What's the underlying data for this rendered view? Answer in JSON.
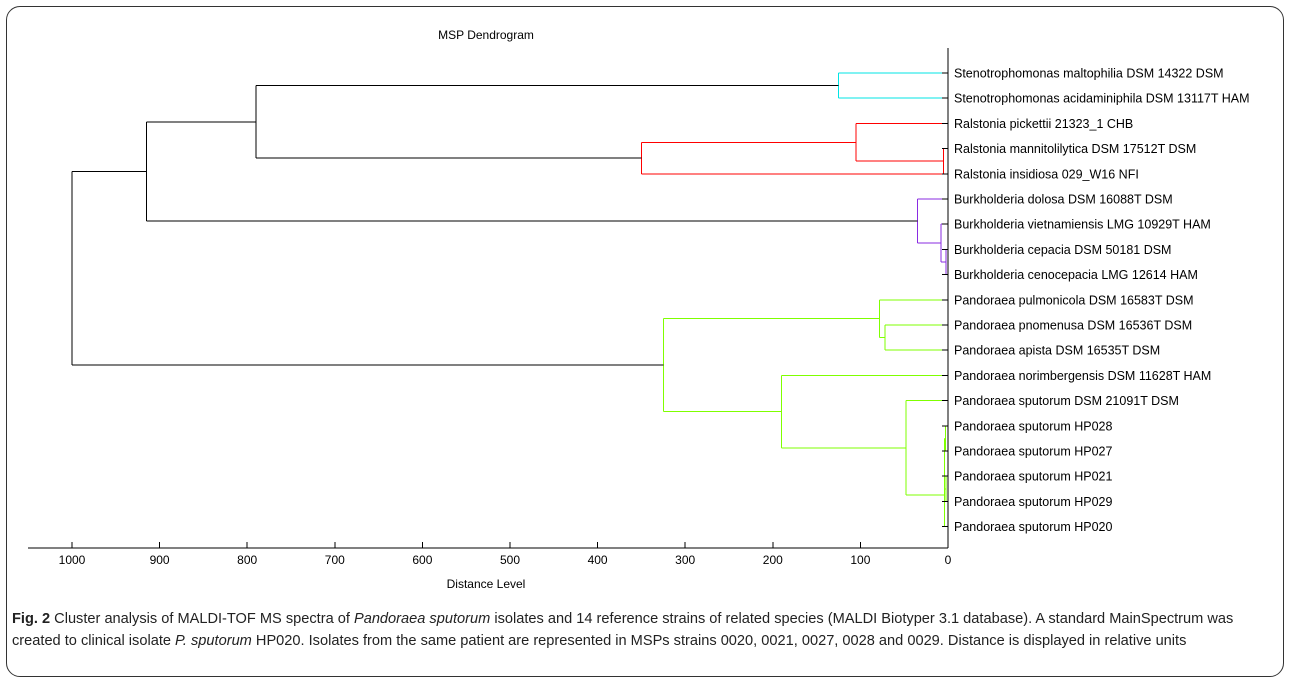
{
  "chart_data": {
    "type": "dendrogram",
    "title": "MSP Dendrogram",
    "xlabel": "Distance Level",
    "xlim": [
      1050,
      0
    ],
    "xticks": [
      1000,
      900,
      800,
      700,
      600,
      500,
      400,
      300,
      200,
      100,
      0
    ],
    "leaves": [
      "Stenotrophomonas maltophilia DSM 14322 DSM",
      "Stenotrophomonas acidaminiphila DSM 13117T HAM",
      "Ralstonia pickettii 21323_1 CHB",
      "Ralstonia mannitolilytica DSM 17512T DSM",
      "Ralstonia insidiosa 029_W16 NFI",
      "Burkholderia dolosa DSM 16088T DSM",
      "Burkholderia vietnamiensis LMG 10929T HAM",
      "Burkholderia cepacia DSM 50181 DSM",
      "Burkholderia cenocepacia LMG 12614 HAM",
      "Pandoraea pulmonicola DSM 16583T DSM",
      "Pandoraea pnomenusa DSM 16536T DSM",
      "Pandoraea apista DSM 16535T DSM",
      "Pandoraea norimbergensis DSM 11628T HAM",
      "Pandoraea sputorum DSM 21091T DSM",
      "Pandoraea sputorum HP028",
      "Pandoraea sputorum HP027",
      "Pandoraea sputorum HP021",
      "Pandoraea sputorum HP029",
      "Pandoraea sputorum HP020"
    ],
    "merges": [
      {
        "id": "N1",
        "children": [
          "L0",
          "L1"
        ],
        "height": 125,
        "color": "#00e5e5"
      },
      {
        "id": "N2",
        "children": [
          "L3",
          "L4"
        ],
        "height": 5,
        "color": "#ff0000"
      },
      {
        "id": "N3",
        "children": [
          "L2",
          "N2"
        ],
        "height": 105,
        "color": "#ff0000"
      },
      {
        "id": "N4",
        "children": [
          "N3",
          "L4x"
        ],
        "height": 350,
        "color": "#ff0000"
      },
      {
        "id": "N5",
        "children": [
          "L7",
          "L8"
        ],
        "height": 2,
        "color": "#8a2be2"
      },
      {
        "id": "N6",
        "children": [
          "N5",
          "L6"
        ],
        "height": 8,
        "color": "#8a2be2"
      },
      {
        "id": "N7",
        "children": [
          "L5",
          "N6"
        ],
        "height": 35,
        "color": "#8a2be2"
      },
      {
        "id": "N8",
        "children": [
          "N1",
          "N4"
        ],
        "height": 790,
        "color": "#000000"
      },
      {
        "id": "N9",
        "children": [
          "N8",
          "N7"
        ],
        "height": 915,
        "color": "#000000"
      },
      {
        "id": "N10",
        "children": [
          "L10",
          "L11"
        ],
        "height": 72,
        "color": "#7fff00"
      },
      {
        "id": "N11",
        "children": [
          "L9",
          "N10"
        ],
        "height": 78,
        "color": "#7fff00"
      },
      {
        "id": "N12",
        "children": [
          "L14",
          "L15"
        ],
        "height": 3,
        "color": "#7fff00"
      },
      {
        "id": "N13",
        "children": [
          "L16",
          "L17"
        ],
        "height": 2,
        "color": "#7fff00"
      },
      {
        "id": "N14",
        "children": [
          "N12",
          "N13"
        ],
        "height": 4,
        "color": "#7fff00"
      },
      {
        "id": "N15",
        "children": [
          "N14",
          "L18"
        ],
        "height": 4,
        "color": "#7fff00"
      },
      {
        "id": "N16",
        "children": [
          "L13",
          "N15"
        ],
        "height": 48,
        "color": "#7fff00"
      },
      {
        "id": "N17",
        "children": [
          "L12",
          "N16"
        ],
        "height": 190,
        "color": "#7fff00"
      },
      {
        "id": "N18",
        "children": [
          "N11",
          "N17"
        ],
        "height": 325,
        "color": "#7fff00"
      },
      {
        "id": "N19",
        "children": [
          "N9",
          "N18"
        ],
        "height": 1000,
        "color": "#000000"
      }
    ]
  },
  "caption": {
    "fig_label": "Fig. 2",
    "p1": " Cluster analysis of MALDI-TOF MS spectra of ",
    "p2": "Pandoraea sputorum",
    "p3": " isolates and 14 reference strains of related species (MALDI Biotyper 3.1 database). A standard MainSpectrum was created to clinical isolate ",
    "p4": "P. sputorum",
    "p5": " HP020. Isolates from the same patient are represented in MSPs strains 0020, 0021, 0027, 0028 and 0029. Distance is displayed in relative units"
  }
}
